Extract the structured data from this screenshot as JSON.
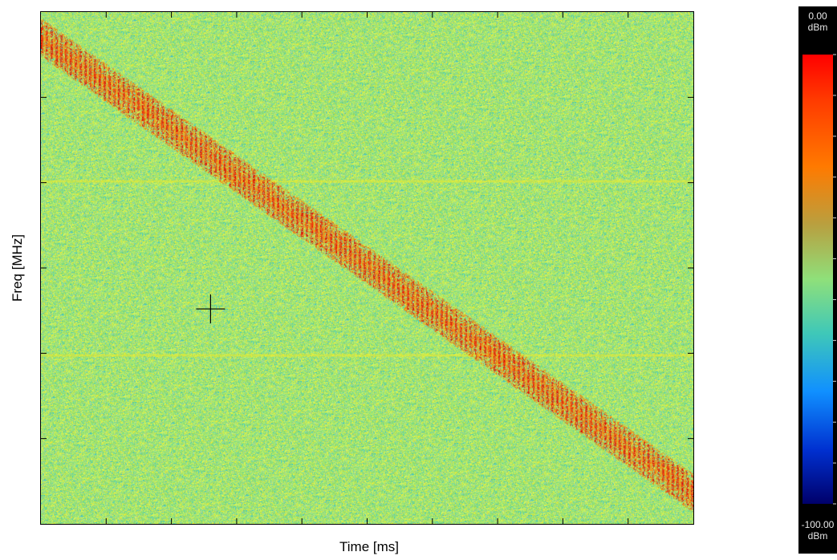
{
  "chart_data": {
    "type": "heatmap",
    "title": "",
    "xlabel": "Time [ms]",
    "ylabel": "Freq [MHz]",
    "x_tick_count": 10,
    "y_tick_count": 6,
    "grid": false,
    "signal": {
      "description_type": "linear-chirp",
      "start": [
        0.0,
        0.95
      ],
      "end": [
        1.0,
        0.06
      ],
      "band_width": 0.075,
      "color": "#ff1a00"
    },
    "background_colors": [
      "#8fe07a",
      "#c8f060",
      "#e6ec38",
      "#40c8c0",
      "#9ad0a8"
    ],
    "harmonic_lines": [
      0.67,
      0.33
    ],
    "cursor": {
      "x": 0.26,
      "y": 0.42
    },
    "colorbar": {
      "max_value": "0.00",
      "max_unit": "dBm",
      "min_value": "-100.00",
      "min_unit": "dBm",
      "tick_count": 11,
      "colors": [
        "#ff0000",
        "#ff7a00",
        "#8fe07a",
        "#1090ff",
        "#00006a"
      ]
    }
  }
}
